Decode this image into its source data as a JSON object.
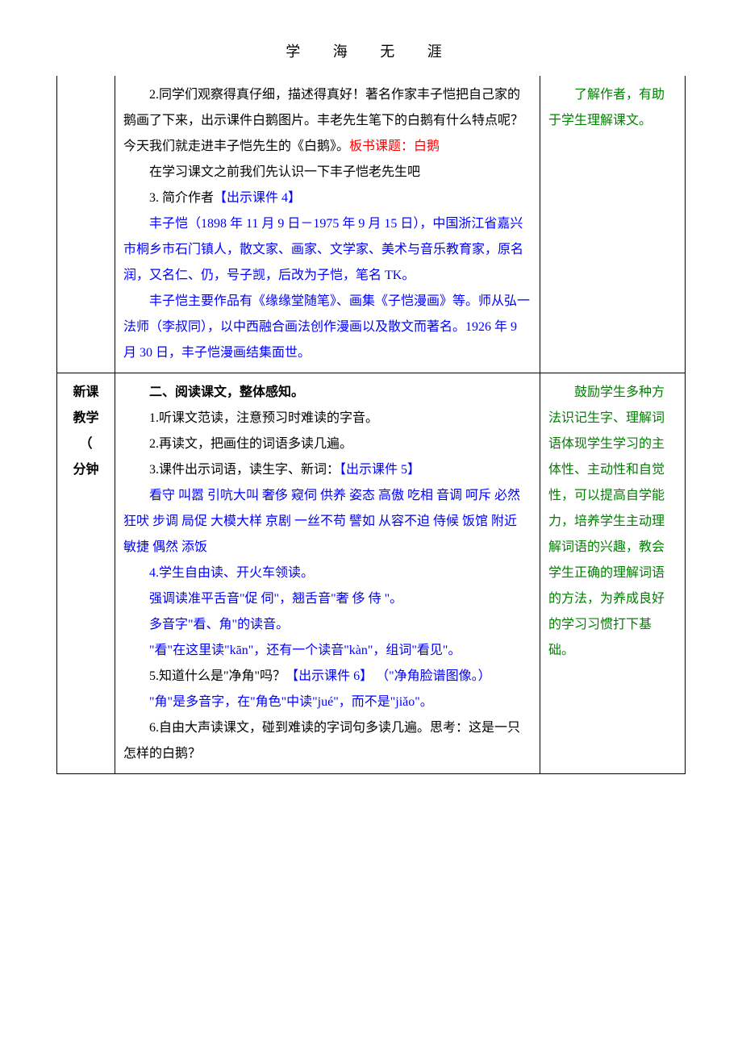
{
  "page": {
    "header": "学 海 无 涯",
    "background_color": "#ffffff",
    "text_color": "#000000",
    "blue": "#0000ff",
    "red": "#ff0000",
    "green": "#008000",
    "font_family_body": "SimSun",
    "font_family_header": "KaiTi",
    "font_size_body": 16,
    "font_size_header": 18,
    "line_height": 2.0
  },
  "row1": {
    "mid": {
      "p1": "2.同学们观察得真仔细，描述得真好！著名作家丰子恺把自己家的鹅画了下来，出示课件白鹅图片。丰老先生笔下的白鹅有什么特点呢？今天我们就走进丰子恺先生的《白鹅》。",
      "p1_red": "板书课题：白鹅",
      "p2": "在学习课文之前我们先认识一下丰子恺老先生吧",
      "p3a": "3. 简介作者",
      "p3b": "【出示课件 4】",
      "p4": "丰子恺（1898 年 11 月 9 日－1975 年 9 月 15 日），中国浙江省嘉兴市桐乡市石门镇人，散文家、画家、文学家、美术与音乐教育家，原名润，又名仁、仍，号子觊，后改为子恺，笔名 TK。",
      "p5": "丰子恺主要作品有《缘缘堂随笔》、画集《子恺漫画》等。师从弘一法师（李叔同），以中西融合画法创作漫画以及散文而著名。1926 年 9 月 30 日，丰子恺漫画结集面世。"
    },
    "right": {
      "p1": "了解作者，有助于学生理解课文。"
    }
  },
  "row2": {
    "left": {
      "l1": "新课",
      "l2": "教学",
      "l3": "（",
      "l4": "分钟"
    },
    "mid": {
      "title": "二、阅读课文，整体感知。",
      "p1": "1.听课文范读，注意预习时难读的字音。",
      "p2": "2.再读文，把画住的词语多读几遍。",
      "p3a": "3.课件出示词语，读生字、新词：",
      "p3b": "【出示课件 5】",
      "p4": "看守 叫嚣 引吭大叫  奢侈 窥伺 供养 姿态 高傲 吃相 音调 呵斥  必然 狂吠 步调 局促 大模大样 京剧 一丝不苟 譬如 从容不迫 侍候 饭馆 附近 敏捷 偶然  添饭",
      "p5": "4.学生自由读、开火车领读。",
      "p6": "强调读准平舌音\"促 伺\"，翘舌音\"奢 侈 侍 \"。",
      "p7": "多音字\"看、角\"的读音。",
      "p8": "\"看\"在这里读\"kān\"，还有一个读音\"kàn\"，组词\"看见\"。",
      "p9a": "5.知道什么是\"净角\"吗？",
      "p9b": "【出示课件 6】 ",
      "p9c": "（\"净角脸谱图像。）",
      "p10": "\"角\"是多音字，在\"角色\"中读\"jué\"，而不是\"jiǎo\"。",
      "p11": "6.自由大声读课文，碰到难读的字词句多读几遍。思考：这是一只怎样的白鹅？"
    },
    "right": {
      "p1": "鼓励学生多种方法识记生字、理解词语体现学生学习的主体性、主动性和自觉性，可以提高自学能力，培养学生主动理解词语的兴趣，教会学生正确的理解词语的方法，为养成良好的学习习惯打下基础。"
    }
  }
}
